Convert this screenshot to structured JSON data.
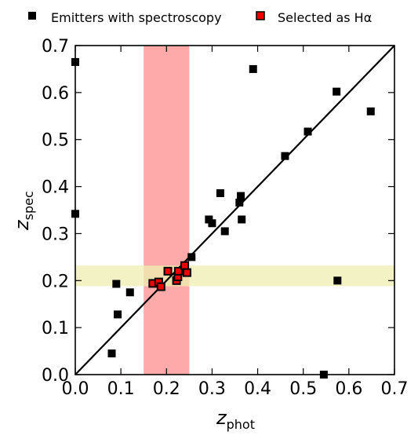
{
  "chart_data": {
    "type": "scatter",
    "title": "",
    "xlabel": "z",
    "xlabel_sub": "phot",
    "ylabel": "z",
    "ylabel_sub": "spec",
    "xlim": [
      0,
      0.7
    ],
    "ylim": [
      0,
      0.7
    ],
    "x_ticks": [
      "0.0",
      "0.1",
      "0.2",
      "0.3",
      "0.4",
      "0.5",
      "0.6",
      "0.7"
    ],
    "y_ticks": [
      "0.0",
      "0.1",
      "0.2",
      "0.3",
      "0.4",
      "0.5",
      "0.6",
      "0.7"
    ],
    "grid": false,
    "legend_position": "top",
    "reference_line": "y = x",
    "bands": {
      "x_band": {
        "from": 0.15,
        "to": 0.25,
        "color": "#ffaaaa"
      },
      "y_band": {
        "from": 0.188,
        "to": 0.232,
        "color": "#eeeeb0"
      }
    },
    "series": [
      {
        "name": "Emitters with spectroscopy",
        "marker": "square",
        "color": "#000000",
        "points": [
          [
            0.0,
            0.665
          ],
          [
            0.0,
            0.342
          ],
          [
            0.08,
            0.045
          ],
          [
            0.09,
            0.193
          ],
          [
            0.093,
            0.128
          ],
          [
            0.12,
            0.175
          ],
          [
            0.255,
            0.25
          ],
          [
            0.293,
            0.33
          ],
          [
            0.3,
            0.322
          ],
          [
            0.318,
            0.386
          ],
          [
            0.328,
            0.305
          ],
          [
            0.36,
            0.366
          ],
          [
            0.363,
            0.38
          ],
          [
            0.365,
            0.33
          ],
          [
            0.39,
            0.65
          ],
          [
            0.46,
            0.465
          ],
          [
            0.51,
            0.517
          ],
          [
            0.545,
            0.0
          ],
          [
            0.573,
            0.602
          ],
          [
            0.575,
            0.2
          ],
          [
            0.648,
            0.56
          ]
        ]
      },
      {
        "name": "Selected as Hα",
        "marker": "square",
        "color": "#ee0000",
        "edge_color": "#000000",
        "points": [
          [
            0.17,
            0.194
          ],
          [
            0.183,
            0.197
          ],
          [
            0.188,
            0.187
          ],
          [
            0.203,
            0.22
          ],
          [
            0.222,
            0.2
          ],
          [
            0.225,
            0.208
          ],
          [
            0.226,
            0.22
          ],
          [
            0.24,
            0.232
          ],
          [
            0.245,
            0.217
          ]
        ]
      }
    ]
  },
  "colors": {
    "identity_line": "#000000",
    "axes": "#000000"
  }
}
